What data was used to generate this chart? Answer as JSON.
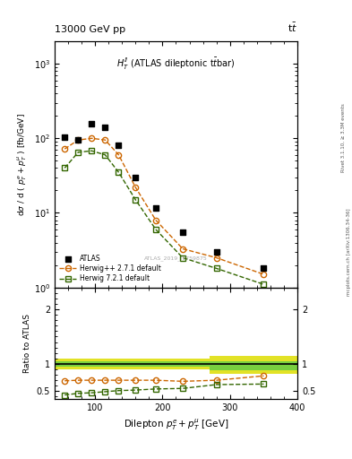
{
  "title_top": "13000 GeV pp",
  "title_right": "tt",
  "panel_title": "$H_T^{ll}$ (ATLAS dileptonic t$\\bar{t}$bar)",
  "watermark": "ATLAS_2019_I1759875",
  "right_label_top": "Rivet 3.1.10, ≥ 3.3M events",
  "right_label_bottom": "mcplots.cern.ch [arXiv:1306.34-36]",
  "xlabel": "Dilepton $p_T^e + p_T^{\\mu}$ [GeV]",
  "ylabel_main": "dσ / d ( $p_T^e + p_T^{\\mu}$ ) [fb/GeV]",
  "ylabel_ratio": "Ratio to ATLAS",
  "x_atlas": [
    55,
    75,
    95,
    115,
    135,
    160,
    190,
    230,
    280,
    350
  ],
  "y_atlas": [
    105,
    95,
    155,
    140,
    80,
    30,
    11.5,
    5.5,
    3.0,
    1.8
  ],
  "x_herwig1": [
    55,
    75,
    95,
    115,
    135,
    160,
    190,
    230,
    280,
    350
  ],
  "y_herwig1": [
    72,
    95,
    100,
    95,
    60,
    22,
    8.0,
    3.3,
    2.5,
    1.5
  ],
  "x_herwig2": [
    55,
    75,
    95,
    115,
    135,
    160,
    190,
    230,
    280,
    350
  ],
  "y_herwig2": [
    40,
    65,
    68,
    60,
    35,
    15,
    6.0,
    2.5,
    1.8,
    1.1
  ],
  "ratio_herwig1": [
    0.69,
    0.7,
    0.7,
    0.7,
    0.7,
    0.7,
    0.7,
    0.68,
    0.7,
    0.78
  ],
  "ratio_herwig2": [
    0.43,
    0.46,
    0.47,
    0.49,
    0.51,
    0.52,
    0.54,
    0.55,
    0.62,
    0.63
  ],
  "color_atlas": "#000000",
  "color_herwig1": "#cc6600",
  "color_herwig2": "#336600",
  "color_green_band": "#66cc44",
  "color_yellow_band": "#dddd00",
  "xlim": [
    40,
    400
  ],
  "ylim_main": [
    1.0,
    2000
  ],
  "ylim_ratio": [
    0.35,
    2.4
  ]
}
